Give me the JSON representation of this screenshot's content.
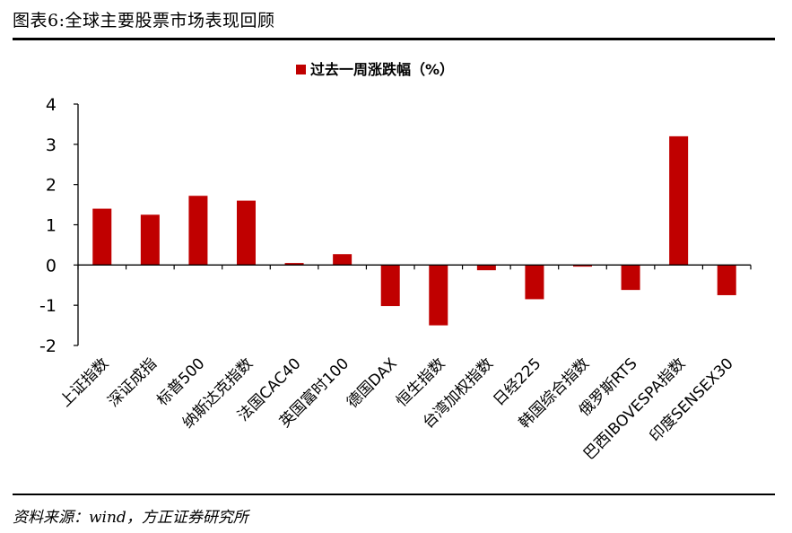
{
  "figure": {
    "title": "图表6:全球主要股票市场表现回顾",
    "source": "资料来源：wind，方正证券研究所"
  },
  "chart_data": {
    "type": "bar",
    "title": "",
    "xlabel": "",
    "ylabel": "",
    "legend": {
      "position": "top-center"
    },
    "ylim": [
      -2,
      4
    ],
    "yticks": [
      4,
      3,
      2,
      1,
      0,
      -1,
      -2
    ],
    "grid": false,
    "categories": [
      "上证指数",
      "深证成指",
      "标普500",
      "纳斯达克指数",
      "法国CAC40",
      "英国富时100",
      "德国DAX",
      "恒生指数",
      "台湾加权指数",
      "日经225",
      "韩国综合指数",
      "俄罗斯RTS",
      "巴西IBOVESPA指数",
      "印度SENSEX30"
    ],
    "series": [
      {
        "name": "过去一周涨跌幅（%）",
        "color": "#C00000",
        "values": [
          1.4,
          1.25,
          1.72,
          1.6,
          0.05,
          0.27,
          -1.02,
          -1.5,
          -0.13,
          -0.85,
          -0.04,
          -0.62,
          3.2,
          -0.75
        ]
      }
    ]
  }
}
